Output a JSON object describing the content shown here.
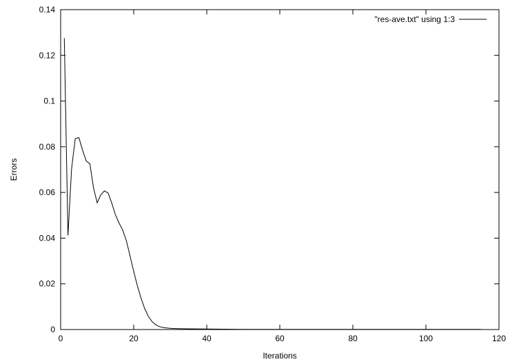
{
  "chart_data": {
    "type": "line",
    "title": "",
    "xlabel": "Iterations",
    "ylabel": "Errors",
    "xlim": [
      0,
      120
    ],
    "ylim": [
      0,
      0.14
    ],
    "xticks": [
      0,
      20,
      40,
      60,
      80,
      100,
      120
    ],
    "xtick_labels": [
      "0",
      "20",
      "40",
      "60",
      "80",
      "100",
      "120"
    ],
    "yticks": [
      0,
      0.02,
      0.04,
      0.06,
      0.08,
      0.1,
      0.12,
      0.14
    ],
    "ytick_labels": [
      "0",
      "0.02",
      "0.04",
      "0.06",
      "0.08",
      "0.1",
      "0.12",
      "0.14"
    ],
    "grid": false,
    "legend_position": "top-right",
    "series": [
      {
        "name": "\"res-ave.txt\" using 1:3",
        "color": "#000000",
        "x": [
          1,
          2,
          3,
          4,
          5,
          6,
          7,
          8,
          9,
          10,
          11,
          12,
          13,
          14,
          15,
          16,
          17,
          18,
          19,
          20,
          21,
          22,
          23,
          24,
          25,
          26,
          27,
          28,
          29,
          30,
          32,
          35,
          40,
          50,
          60,
          70,
          80,
          90,
          100,
          110,
          115
        ],
        "y": [
          0.1275,
          0.0412,
          0.0705,
          0.0836,
          0.084,
          0.0785,
          0.0738,
          0.0725,
          0.062,
          0.0555,
          0.059,
          0.0607,
          0.0597,
          0.0553,
          0.0502,
          0.0466,
          0.0435,
          0.0388,
          0.0322,
          0.0254,
          0.0192,
          0.0138,
          0.0092,
          0.0058,
          0.0035,
          0.0021,
          0.0013,
          0.0009,
          0.0007,
          0.0005,
          0.0004,
          0.0003,
          0.0002,
          0.0001,
          0.0001,
          0.0001,
          0.0001,
          0.0001,
          0.0001,
          0.0001,
          0.0001
        ]
      }
    ]
  }
}
